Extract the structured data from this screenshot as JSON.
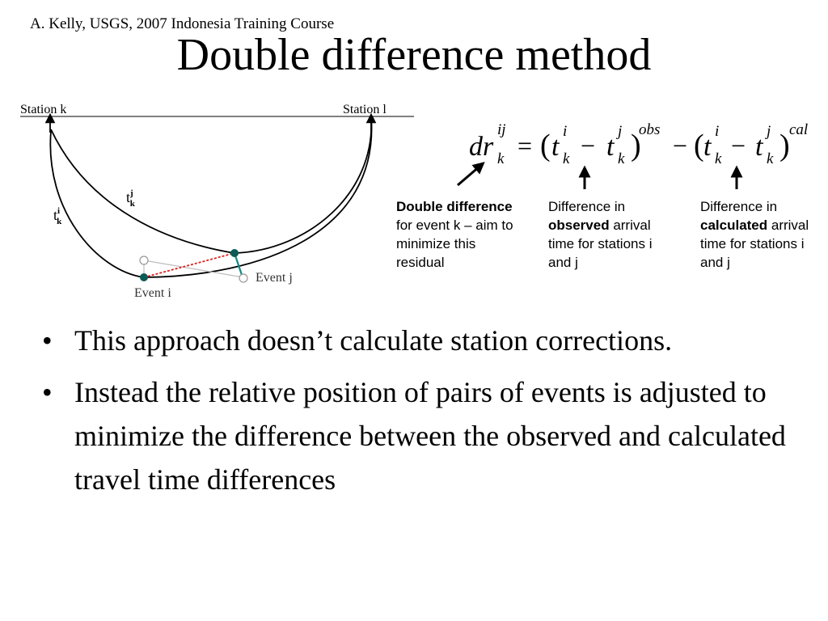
{
  "header": {
    "credit": "A. Kelly, USGS, 2007 Indonesia Training Course",
    "title": "Double difference method"
  },
  "diagram": {
    "station_k": "Station k",
    "station_l": "Station l",
    "event_i": "Event i",
    "event_j": "Event j",
    "t_symbol": "t",
    "sup_i": "i",
    "sup_j": "j",
    "sub_k": "k",
    "colors": {
      "raypath": "#000000",
      "event_link": "#e0201c",
      "shift": "#0f8a8a",
      "event_marker": "#0b5b57",
      "ghost": "#999999",
      "ghost_link": "#bdbdbd"
    }
  },
  "formula": {
    "dr": "dr",
    "ij": "ij",
    "k": "k",
    "eq": "=",
    "open": "(",
    "close": ")",
    "t": "t",
    "i": "i",
    "j": "j",
    "minus": "−",
    "obs": "obs",
    "cal": "cal"
  },
  "annotations": {
    "double": {
      "bold": "Double difference",
      "rest": " for event k – aim to minimize this residual"
    },
    "observed": {
      "pre": "Difference in ",
      "bold": "observed",
      "rest": " arrival time for stations i and j"
    },
    "calculated": {
      "pre": "Difference in ",
      "bold": "calculated",
      "rest": " arrival time for stations i and j"
    }
  },
  "bullets": [
    "This approach doesn’t calculate station corrections.",
    "Instead the relative position of pairs of events is adjusted to minimize the difference between the observed and calculated travel time differences"
  ]
}
